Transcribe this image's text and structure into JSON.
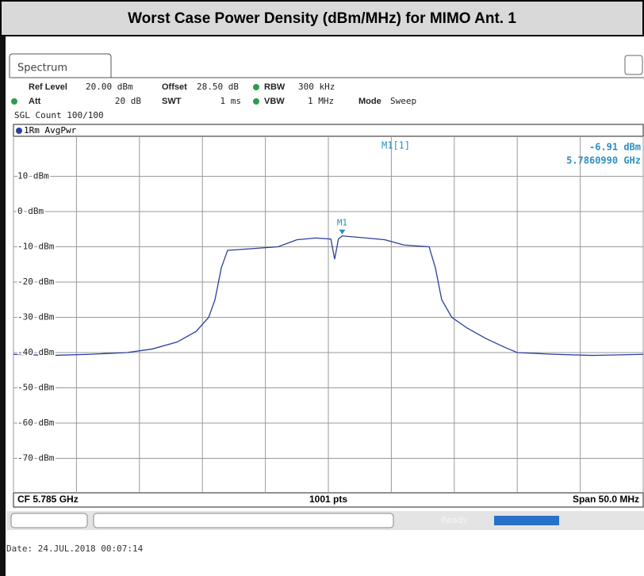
{
  "title": "Worst Case Power Density (dBm/MHz) for MIMO Ant. 1",
  "screen": {
    "tab": "Spectrum",
    "ref_level_label": "Ref Level",
    "ref_level": "20.00 dBm",
    "offset_label": "Offset",
    "offset": "28.50 dB",
    "rbw_label": "RBW",
    "rbw": "300 kHz",
    "att_label": "Att",
    "att": "20 dB",
    "swt_label": "SWT",
    "swt": "1 ms",
    "vbw_label": "VBW",
    "vbw": "1 MHz",
    "mode_label": "Mode",
    "mode": "Sweep",
    "sgl_count": "SGL Count 100/100",
    "trace_label": "1Rm AvgPwr",
    "cf": "CF 5.785 GHz",
    "points": "1001 pts",
    "span": "Span 50.0 MHz",
    "status": "Ready",
    "date": "Date: 24.JUL.2018  00:07:14"
  },
  "chart_data": {
    "type": "line",
    "xlim": [
      5.76,
      5.81
    ],
    "ylim": [
      -80,
      20
    ],
    "yticks": [
      {
        "value": 10,
        "label": "10 dBm"
      },
      {
        "value": 0,
        "label": "0 dBm"
      },
      {
        "value": -10,
        "label": "-10 dBm"
      },
      {
        "value": -20,
        "label": "-20 dBm"
      },
      {
        "value": -30,
        "label": "-30 dBm"
      },
      {
        "value": -40,
        "label": "-40 dBm"
      },
      {
        "value": -50,
        "label": "-50 dBm"
      },
      {
        "value": -60,
        "label": "-60 dBm"
      },
      {
        "value": -70,
        "label": "-70 dBm"
      }
    ],
    "xticks": [
      5.76,
      5.765,
      5.77,
      5.775,
      5.78,
      5.785,
      5.79,
      5.795,
      5.8,
      5.805,
      5.81
    ],
    "grid": true,
    "series": [
      {
        "name": "1Rm AvgPwr",
        "color": "#2a3f9e",
        "x": [
          5.76,
          5.763,
          5.766,
          5.769,
          5.771,
          5.773,
          5.7745,
          5.7755,
          5.776,
          5.7765,
          5.777,
          5.779,
          5.781,
          5.7825,
          5.784,
          5.7852,
          5.7855,
          5.7858,
          5.7861,
          5.788,
          5.7895,
          5.791,
          5.793,
          5.7935,
          5.794,
          5.7948,
          5.796,
          5.7975,
          5.799,
          5.8,
          5.803,
          5.806,
          5.81
        ],
        "values": [
          -40.5,
          -40.8,
          -40.5,
          -40,
          -39,
          -37,
          -34,
          -30,
          -25,
          -16,
          -11,
          -10.5,
          -10,
          -8,
          -7.5,
          -7.8,
          -13.5,
          -7.8,
          -6.91,
          -7.5,
          -8,
          -9.5,
          -10,
          -16,
          -25,
          -30,
          -33,
          -36,
          -38.5,
          -40,
          -40.5,
          -40.8,
          -40.5
        ]
      }
    ],
    "marker": {
      "name": "M1",
      "label": "M1[1]",
      "x": 5.786099,
      "y": -6.91,
      "value_label": "-6.91 dBm",
      "x_label": "5.7860990 GHz"
    }
  }
}
